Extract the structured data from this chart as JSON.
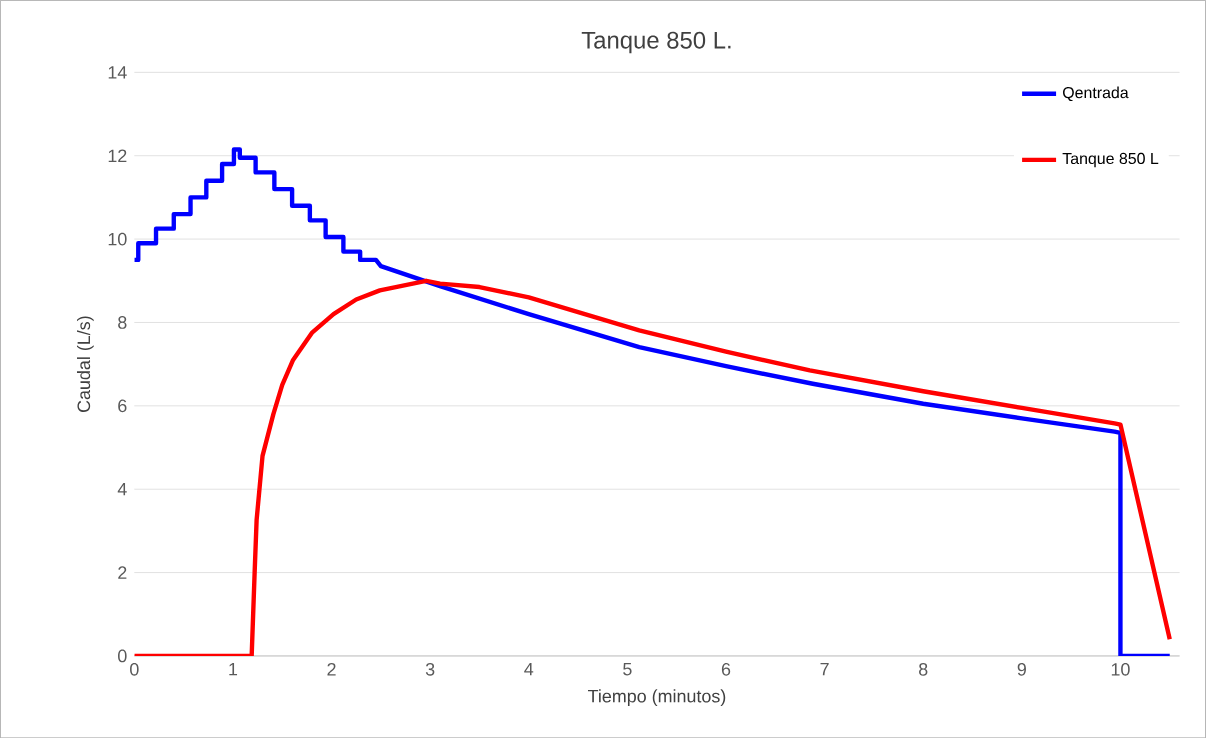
{
  "chart_data": {
    "type": "line",
    "title": "Tanque 850 L.",
    "xlabel": "Tiempo (minutos)",
    "ylabel": "Caudal (L/s)",
    "xlim": [
      0,
      10.6
    ],
    "ylim": [
      0,
      14
    ],
    "xticks": [
      0,
      1,
      2,
      3,
      4,
      5,
      6,
      7,
      8,
      9,
      10
    ],
    "yticks": [
      0,
      2,
      4,
      6,
      8,
      10,
      12,
      14
    ],
    "grid": "y",
    "legend": "top right",
    "marker": "none",
    "line_style": "solid",
    "series": [
      {
        "name": "Qentrada",
        "color": "#0000ff",
        "x": [
          0,
          0.04,
          0.04,
          0.22,
          0.22,
          0.4,
          0.4,
          0.57,
          0.57,
          0.73,
          0.73,
          0.89,
          0.89,
          1.01,
          1.01,
          1.07,
          1.07,
          1.23,
          1.23,
          1.42,
          1.42,
          1.6,
          1.6,
          1.78,
          1.78,
          1.94,
          1.94,
          2.12,
          2.12,
          2.29,
          2.29,
          2.45,
          2.5,
          3.1,
          4,
          5.12,
          6,
          6.88,
          8,
          9,
          9.94,
          10,
          10,
          10.5
        ],
        "values": [
          9.5,
          9.5,
          9.9,
          9.9,
          10.25,
          10.25,
          10.6,
          10.6,
          11.0,
          11.0,
          11.4,
          11.4,
          11.8,
          11.8,
          12.15,
          12.15,
          11.95,
          11.95,
          11.6,
          11.6,
          11.2,
          11.2,
          10.8,
          10.8,
          10.45,
          10.45,
          10.05,
          10.05,
          9.7,
          9.7,
          9.5,
          9.5,
          9.35,
          8.87,
          8.2,
          7.41,
          6.95,
          6.53,
          6.05,
          5.7,
          5.38,
          5.35,
          0,
          0
        ]
      },
      {
        "name": "Tanque 850 L",
        "color": "#ff0000",
        "x": [
          0,
          1.19,
          1.22,
          1.24,
          1.3,
          1.41,
          1.5,
          1.61,
          1.8,
          2.02,
          2.25,
          2.49,
          2.96,
          3.1,
          3.5,
          4,
          5.12,
          6,
          6.85,
          8,
          9,
          9.94,
          10,
          10.5
        ],
        "values": [
          0,
          0,
          2.0,
          3.26,
          4.8,
          5.8,
          6.5,
          7.1,
          7.75,
          8.2,
          8.55,
          8.77,
          9.0,
          8.93,
          8.85,
          8.6,
          7.81,
          7.3,
          6.85,
          6.35,
          5.95,
          5.58,
          5.55,
          0.4
        ]
      }
    ]
  }
}
